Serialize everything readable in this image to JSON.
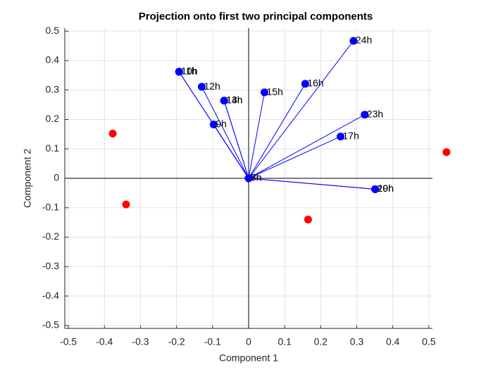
{
  "chart_data": {
    "type": "biplot",
    "title": "Projection onto first two principal components",
    "xlabel": "Component 1",
    "ylabel": "Component 2",
    "xlim": [
      -0.51,
      0.51
    ],
    "ylim": [
      -0.51,
      0.51
    ],
    "xticks": [
      -0.5,
      -0.4,
      -0.3,
      -0.2,
      -0.1,
      0,
      0.1,
      0.2,
      0.3,
      0.4,
      0.5
    ],
    "yticks": [
      -0.5,
      -0.4,
      -0.3,
      -0.2,
      -0.1,
      0,
      0.1,
      0.2,
      0.3,
      0.4,
      0.5
    ],
    "grid": true,
    "vectors": {
      "color": "#0000ff",
      "labels": [
        "7h",
        "8h",
        "9h",
        "10h",
        "11h",
        "12h",
        "13h",
        "14h",
        "15h",
        "16h",
        "17h",
        "19h",
        "20h",
        "23h",
        "24h"
      ],
      "x": [
        0,
        0,
        -0.097,
        -0.193,
        -0.193,
        -0.13,
        -0.068,
        -0.068,
        0.044,
        0.157,
        0.255,
        0.351,
        0.351,
        0.322,
        0.291
      ],
      "y": [
        0,
        0,
        0.183,
        0.362,
        0.362,
        0.311,
        0.264,
        0.264,
        0.292,
        0.321,
        0.142,
        -0.037,
        -0.037,
        0.216,
        0.467
      ]
    },
    "scores": {
      "color": "#ff0000",
      "x": [
        -0.377,
        -0.34,
        0.165,
        0.549
      ],
      "y": [
        0.152,
        -0.089,
        -0.14,
        0.089
      ]
    }
  }
}
